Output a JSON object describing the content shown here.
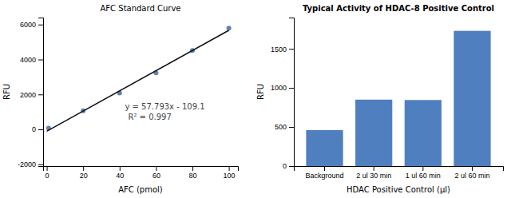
{
  "chart_data": [
    {
      "type": "scatter",
      "title": "AFC Standard  Curve",
      "x_label": "AFC (pmol)",
      "y_label": "RFU",
      "series": [
        {
          "type": "scatter",
          "color": "#5b84b8",
          "x": [
            1,
            20,
            40,
            60,
            80,
            100
          ],
          "values": [
            75,
            1060,
            2080,
            3240,
            4520,
            5790
          ]
        },
        {
          "type": "line",
          "color": "#111111",
          "x": [
            0,
            100
          ],
          "values": [
            -109.1,
            5670.2
          ]
        }
      ],
      "xlim": [
        -2,
        105
      ],
      "ylim": [
        -2100,
        6400
      ],
      "xticks": [
        0,
        20,
        40,
        60,
        80,
        100
      ],
      "yticks": [
        -2000,
        0,
        2000,
        4000,
        6000
      ],
      "annotations": [
        "y = 57.793x - 109.1",
        "R² = 0.997"
      ]
    },
    {
      "type": "bar",
      "title": "Typical Activity of HDAC-8 Positive Control",
      "x_label": "HDAC Positive Control (μl)",
      "y_label": "RFU",
      "categories": [
        "Background",
        "2 ul 30 min",
        "1 ul 60 min",
        "2 ul 60 min"
      ],
      "values": [
        460,
        850,
        845,
        1730
      ],
      "color": "#4f7fbf",
      "ylim": [
        0,
        1900
      ],
      "yticks": [
        0,
        500,
        1000,
        1500
      ]
    }
  ]
}
